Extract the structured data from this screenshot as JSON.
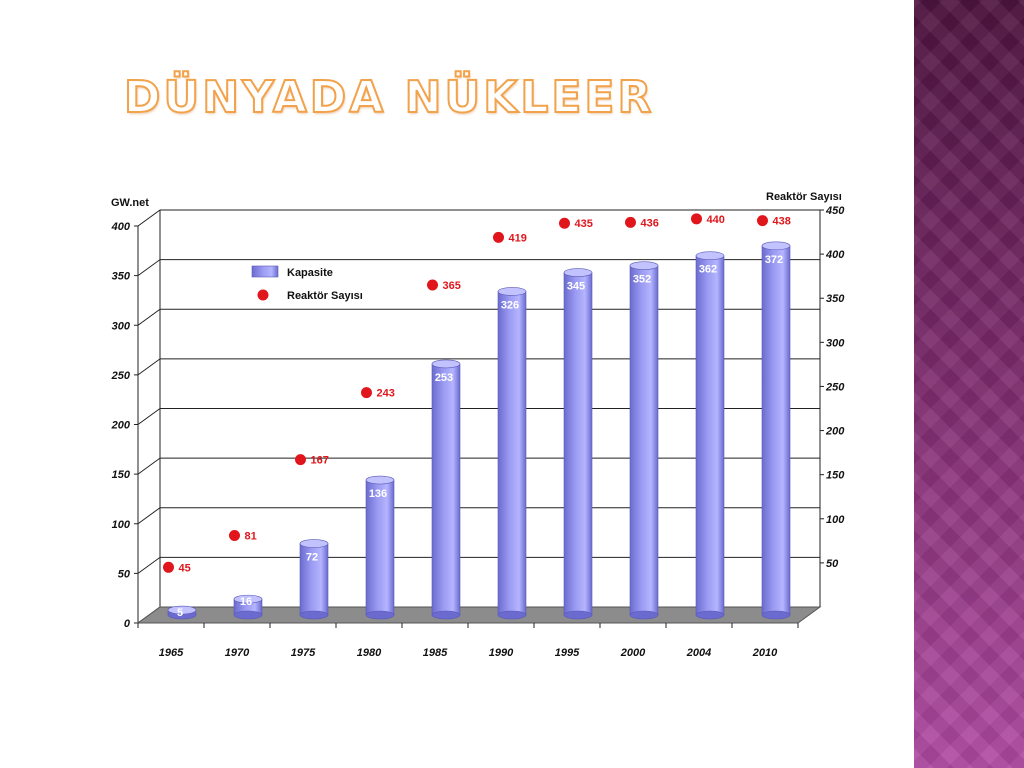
{
  "slide": {
    "title": "DÜNYADA NÜKLEER"
  },
  "colors": {
    "bar": "#9a9af2",
    "bar_dark": "#6b6bcf",
    "marker": "#e0161c",
    "floor": "#8c8c8c",
    "side_panel": "#7a2a6a",
    "title_outline": "#f2a24a"
  },
  "chart_data": {
    "type": "bar",
    "left_axis_label": "GW.net",
    "right_axis_label": "Reaktör Sayısı",
    "categories": [
      "1965",
      "1970",
      "1975",
      "1980",
      "1985",
      "1990",
      "1995",
      "2000",
      "2004",
      "2010"
    ],
    "series": [
      {
        "name": "Kapasite",
        "type": "bar",
        "axis": "left",
        "values": [
          5,
          16,
          72,
          136,
          253,
          326,
          345,
          352,
          362,
          372
        ]
      },
      {
        "name": "Reaktör Sayısı",
        "type": "scatter",
        "axis": "right",
        "values": [
          45,
          81,
          167,
          243,
          365,
          419,
          435,
          436,
          440,
          438
        ]
      }
    ],
    "left_axis": {
      "min": 0,
      "max": 400,
      "ticks": [
        "0",
        "50",
        "100",
        "150",
        "200",
        "250",
        "300",
        "350",
        "400"
      ]
    },
    "right_axis": {
      "min": 0,
      "max": 450,
      "ticks": [
        "50",
        "100",
        "150",
        "200",
        "250",
        "300",
        "350",
        "400",
        "450"
      ]
    },
    "grid": true,
    "legend": {
      "placement": "top-left",
      "entries": [
        "Kapasite",
        "Reaktör Sayısı"
      ]
    }
  }
}
